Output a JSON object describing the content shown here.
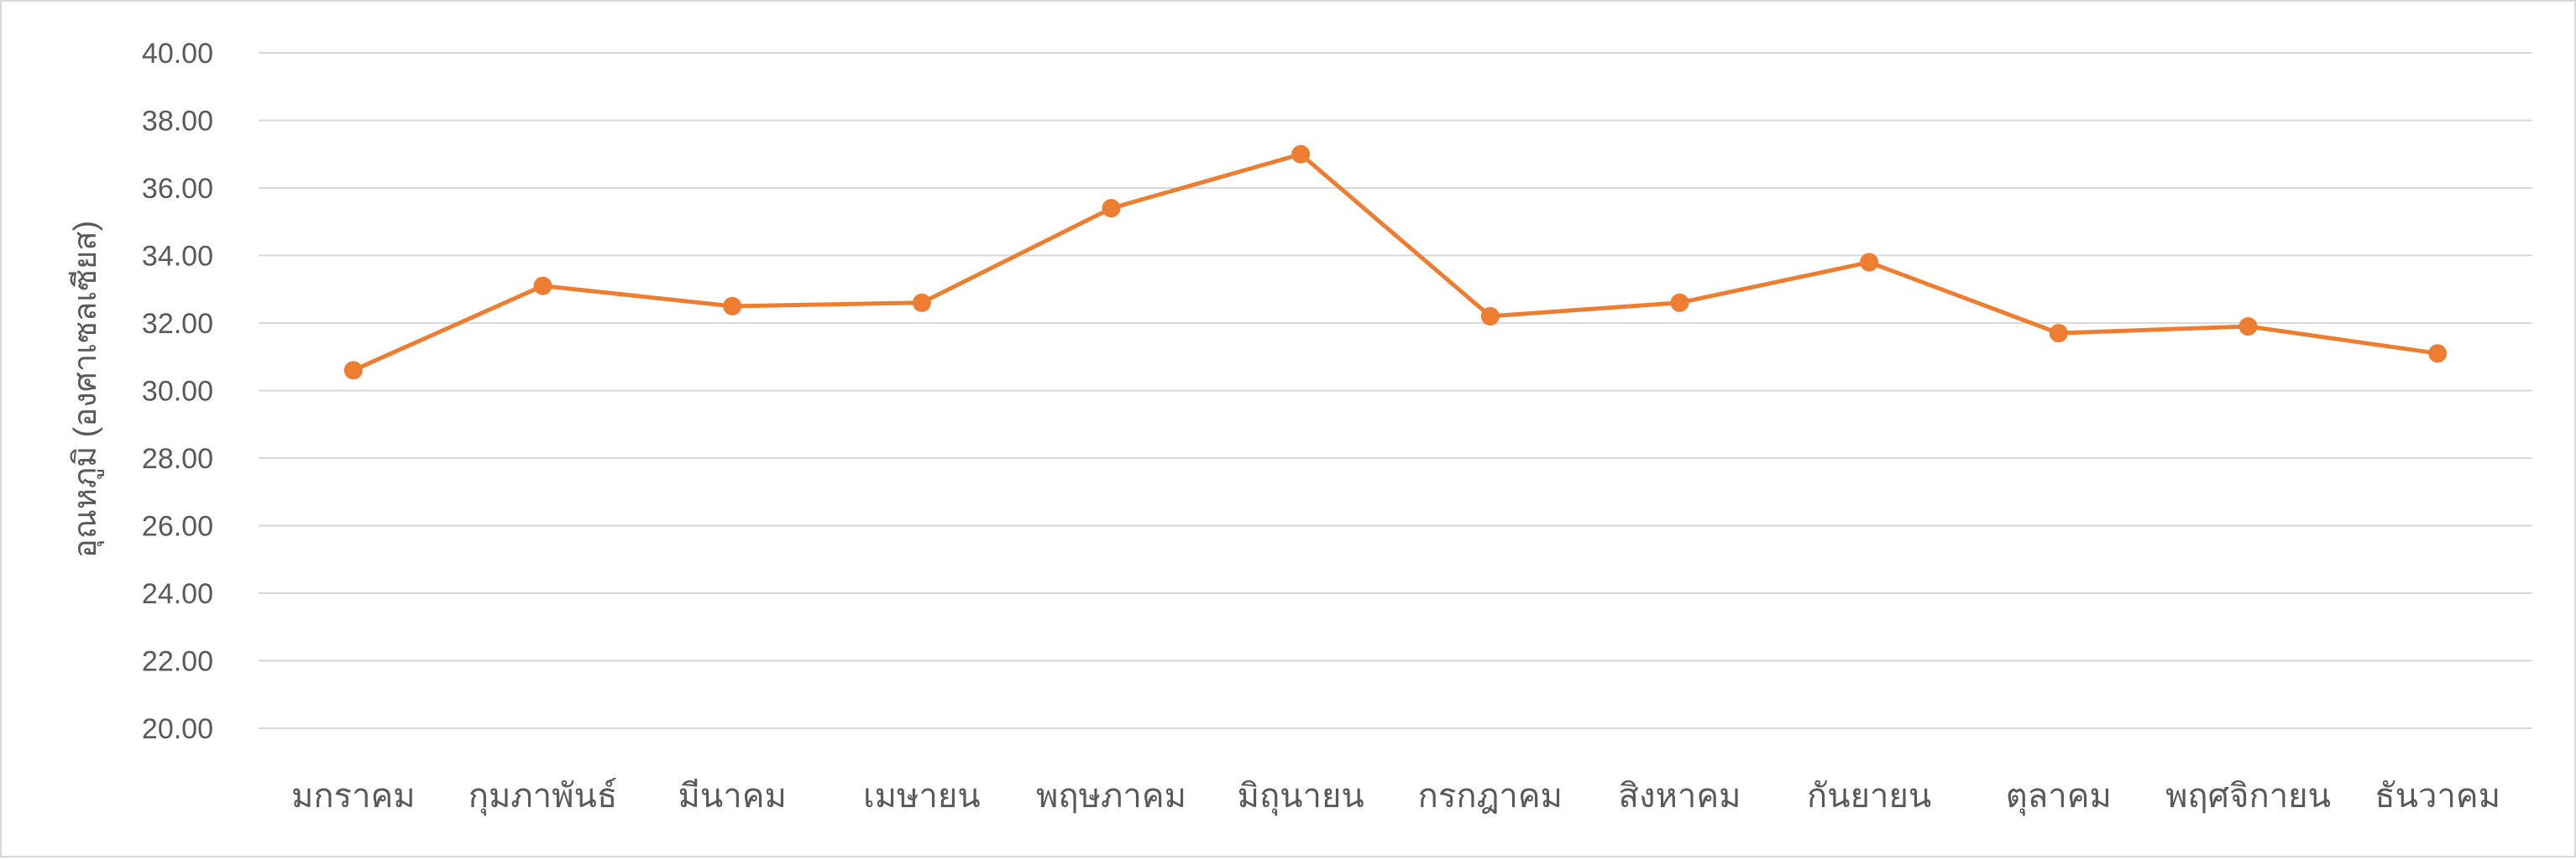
{
  "chart_data": {
    "type": "line",
    "title": "",
    "xlabel": "",
    "ylabel": "อุณหภูมิ (องศาเซลเซียส)",
    "ylim": [
      20,
      40
    ],
    "ytick_step": 2,
    "yticks": [
      "20.00",
      "22.00",
      "24.00",
      "26.00",
      "28.00",
      "30.00",
      "32.00",
      "34.00",
      "36.00",
      "38.00",
      "40.00"
    ],
    "categories": [
      "มกราคม",
      "กุมภาพันธ์",
      "มีนาคม",
      "เมษายน",
      "พฤษภาคม",
      "มิถุนายน",
      "กรกฎาคม",
      "สิงหาคม",
      "กันยายน",
      "ตุลาคม",
      "พฤศจิกายน",
      "ธันวาคม"
    ],
    "series": [
      {
        "values": [
          30.6,
          33.1,
          32.5,
          32.6,
          35.4,
          37.0,
          32.2,
          32.6,
          33.8,
          31.7,
          31.9,
          31.1
        ],
        "color": "#ED7D31"
      }
    ],
    "grid": true,
    "legend": "none",
    "colors": {
      "gridline": "#d9d9d9",
      "text": "#595959",
      "border": "#d9d9d9"
    }
  }
}
